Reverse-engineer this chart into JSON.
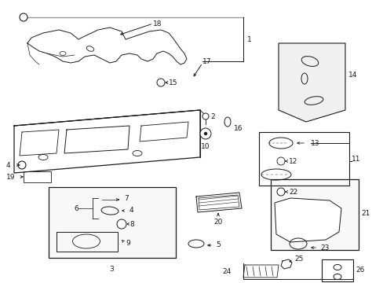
{
  "bg_color": "#ffffff",
  "line_color": "#1a1a1a",
  "gray_line_color": "#999999",
  "fig_width": 4.89,
  "fig_height": 3.6,
  "dpi": 100
}
